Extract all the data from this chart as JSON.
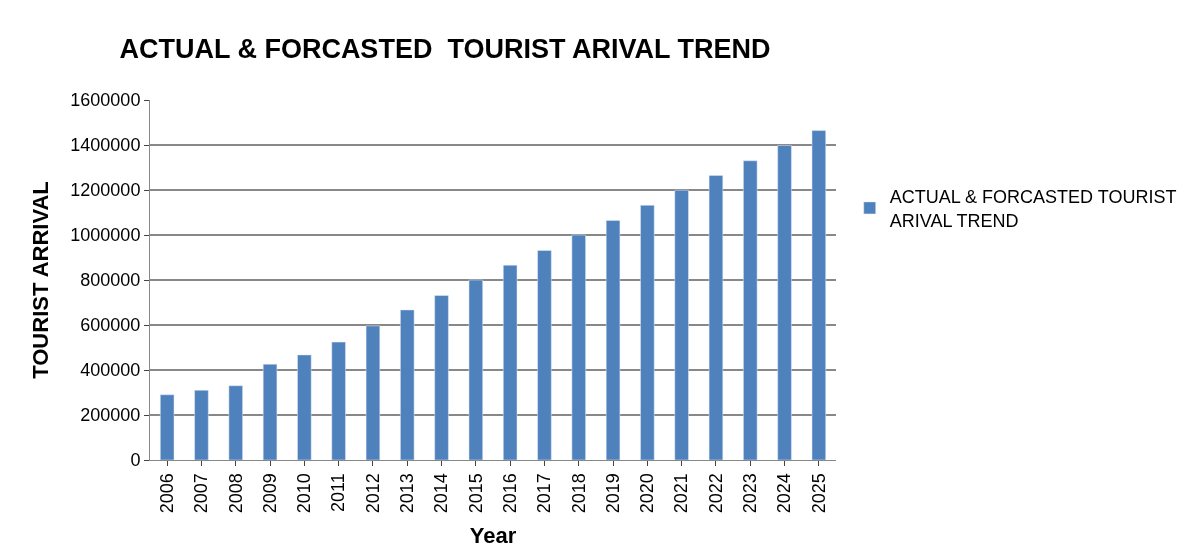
{
  "chart_data": {
    "type": "bar",
    "title": "ACTUAL & FORCASTED  TOURIST ARIVAL TREND",
    "xlabel": "Year",
    "ylabel": "TOURIST ARRIVAL",
    "categories": [
      "2006",
      "2007",
      "2008",
      "2009",
      "2010",
      "2011",
      "2012",
      "2013",
      "2014",
      "2015",
      "2016",
      "2017",
      "2018",
      "2019",
      "2020",
      "2021",
      "2022",
      "2023",
      "2024",
      "2025"
    ],
    "series": [
      {
        "name": "ACTUAL & FORCASTED TOURIST ARIVAL TREND",
        "color": "#4f81bd",
        "values": [
          290000,
          310000,
          330000,
          426000,
          467000,
          524000,
          596000,
          667000,
          731000,
          800000,
          866000,
          931000,
          1000000,
          1065000,
          1132000,
          1199000,
          1265000,
          1330000,
          1398000,
          1464000
        ]
      }
    ],
    "ylim": [
      0,
      1600000
    ],
    "yticks": [
      0,
      200000,
      400000,
      600000,
      800000,
      1000000,
      1200000,
      1400000,
      1600000
    ],
    "grid": "y",
    "legend": "right"
  }
}
